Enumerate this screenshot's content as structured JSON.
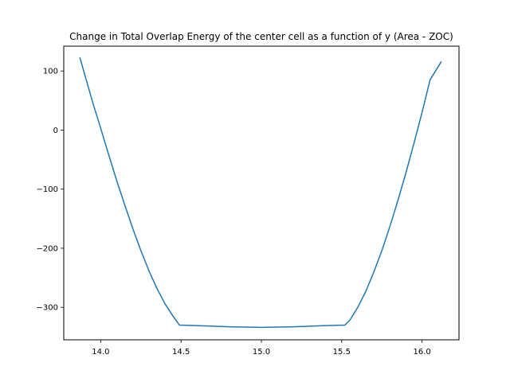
{
  "chart_data": {
    "type": "line",
    "title": "Change in Total Overlap Energy of the center cell as a function of y (Area - ZOC)",
    "xlabel": "",
    "ylabel": "",
    "xlim": [
      13.77,
      16.23
    ],
    "ylim": [
      -355,
      142
    ],
    "x_ticks": [
      14.0,
      14.5,
      15.0,
      15.5,
      16.0
    ],
    "x_tick_labels": [
      "14.0",
      "14.5",
      "15.0",
      "15.5",
      "16.0"
    ],
    "y_ticks": [
      100,
      0,
      -100,
      -200,
      -300
    ],
    "y_tick_labels": [
      "100",
      "0",
      "−100",
      "−200",
      "−300"
    ],
    "grid": false,
    "legend": "none",
    "series": [
      {
        "color": "#1f77b4",
        "x": [
          13.87,
          13.95,
          14.0,
          14.05,
          14.1,
          14.15,
          14.2,
          14.25,
          14.3,
          14.35,
          14.4,
          14.45,
          14.49,
          14.6,
          14.7,
          14.8,
          14.9,
          15.0,
          15.1,
          15.2,
          15.3,
          15.4,
          15.52,
          15.55,
          15.6,
          15.65,
          15.7,
          15.75,
          15.8,
          15.85,
          15.9,
          15.95,
          16.0,
          16.05,
          16.12
        ],
        "y": [
          123,
          47,
          3,
          -42,
          -86,
          -127,
          -167,
          -204,
          -238,
          -268,
          -294,
          -315,
          -330,
          -331,
          -332,
          -333,
          -333.5,
          -334,
          -333.5,
          -333,
          -332,
          -331,
          -330,
          -322,
          -300,
          -273,
          -240,
          -204,
          -163,
          -119,
          -72,
          -22,
          30,
          85,
          116
        ]
      }
    ]
  }
}
